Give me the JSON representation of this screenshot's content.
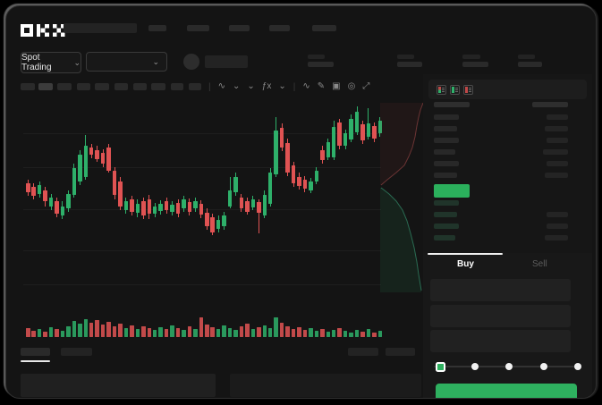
{
  "app": {
    "logo": "OKX",
    "colors": {
      "up": "#2eb06a",
      "down": "#e05353",
      "accent_green": "#2eb05f",
      "bg": "#141414"
    }
  },
  "market_bar": {
    "selector_label": "Spot Trading",
    "chevron": "⌄"
  },
  "chart_toolbar": {
    "icons": [
      {
        "name": "divider",
        "glyph": "|"
      },
      {
        "name": "candle-style-icon",
        "glyph": "∿"
      },
      {
        "name": "candle-style-chevron-icon",
        "glyph": "⌄"
      },
      {
        "name": "layout-chevron-icon",
        "glyph": "⌄"
      },
      {
        "name": "indicators-icon",
        "glyph": "ƒx"
      },
      {
        "name": "indicators-chevron-icon",
        "glyph": "⌄"
      },
      {
        "name": "divider",
        "glyph": "|"
      },
      {
        "name": "line-tool-icon",
        "glyph": "∿"
      },
      {
        "name": "draw-tool-icon",
        "glyph": "✎"
      },
      {
        "name": "screenshot-icon",
        "glyph": "▣"
      },
      {
        "name": "settings-icon",
        "glyph": "◎"
      },
      {
        "name": "fullscreen-icon",
        "glyph": "⤢"
      }
    ]
  },
  "chart": {
    "gridlines": [
      36,
      74,
      121,
      167,
      205
    ],
    "candles": [
      [
        "r",
        92,
        102,
        88,
        106
      ],
      [
        "r",
        96,
        106,
        92,
        110
      ],
      [
        "g",
        94,
        104,
        90,
        108
      ],
      [
        "r",
        100,
        112,
        96,
        118
      ],
      [
        "g",
        108,
        118,
        104,
        122
      ],
      [
        "r",
        112,
        126,
        108,
        130
      ],
      [
        "g",
        118,
        128,
        112,
        132
      ],
      [
        "g",
        104,
        120,
        100,
        124
      ],
      [
        "g",
        75,
        105,
        70,
        108
      ],
      [
        "g",
        60,
        90,
        55,
        94
      ],
      [
        "g",
        50,
        85,
        38,
        88
      ],
      [
        "r",
        52,
        60,
        48,
        64
      ],
      [
        "r",
        55,
        65,
        50,
        68
      ],
      [
        "r",
        58,
        70,
        54,
        74
      ],
      [
        "r",
        52,
        78,
        48,
        80
      ],
      [
        "r",
        78,
        105,
        74,
        110
      ],
      [
        "r",
        90,
        118,
        85,
        122
      ],
      [
        "g",
        112,
        122,
        108,
        126
      ],
      [
        "r",
        110,
        124,
        106,
        128
      ],
      [
        "g",
        115,
        125,
        110,
        130
      ],
      [
        "r",
        112,
        128,
        108,
        132
      ],
      [
        "r",
        110,
        126,
        105,
        132
      ],
      [
        "g",
        118,
        126,
        114,
        130
      ],
      [
        "g",
        115,
        123,
        111,
        127
      ],
      [
        "r",
        112,
        122,
        108,
        126
      ],
      [
        "g",
        116,
        124,
        112,
        128
      ],
      [
        "r",
        114,
        126,
        110,
        130
      ],
      [
        "g",
        110,
        120,
        106,
        124
      ],
      [
        "r",
        113,
        124,
        109,
        128
      ],
      [
        "g",
        112,
        120,
        108,
        124
      ],
      [
        "r",
        115,
        127,
        111,
        131
      ],
      [
        "r",
        125,
        140,
        120,
        144
      ],
      [
        "r",
        130,
        147,
        126,
        150
      ],
      [
        "g",
        133,
        143,
        128,
        147
      ],
      [
        "g",
        128,
        140,
        124,
        144
      ],
      [
        "g",
        100,
        118,
        85,
        120
      ],
      [
        "g",
        85,
        102,
        80,
        106
      ],
      [
        "r",
        108,
        120,
        104,
        124
      ],
      [
        "r",
        112,
        124,
        108,
        127
      ],
      [
        "g",
        110,
        119,
        106,
        122
      ],
      [
        "r",
        113,
        125,
        110,
        148
      ],
      [
        "g",
        105,
        128,
        100,
        131
      ],
      [
        "g",
        80,
        115,
        75,
        118
      ],
      [
        "g",
        33,
        82,
        18,
        85
      ],
      [
        "r",
        30,
        52,
        25,
        56
      ],
      [
        "r",
        47,
        80,
        42,
        84
      ],
      [
        "r",
        72,
        92,
        68,
        96
      ],
      [
        "r",
        85,
        95,
        80,
        99
      ],
      [
        "r",
        88,
        98,
        84,
        102
      ],
      [
        "g",
        90,
        100,
        86,
        103
      ],
      [
        "g",
        78,
        90,
        74,
        93
      ],
      [
        "r",
        55,
        66,
        50,
        70
      ],
      [
        "g",
        46,
        63,
        42,
        66
      ],
      [
        "g",
        29,
        63,
        22,
        66
      ],
      [
        "r",
        24,
        50,
        20,
        54
      ],
      [
        "g",
        36,
        50,
        32,
        54
      ],
      [
        "g",
        20,
        43,
        15,
        46
      ],
      [
        "g",
        12,
        35,
        6,
        38
      ],
      [
        "r",
        26,
        44,
        22,
        48
      ],
      [
        "g",
        25,
        40,
        8,
        43
      ],
      [
        "r",
        28,
        42,
        24,
        46
      ],
      [
        "g",
        22,
        36,
        18,
        40
      ]
    ],
    "volumes": [
      10,
      7,
      9,
      6,
      11,
      9,
      7,
      12,
      18,
      15,
      20,
      16,
      19,
      14,
      17,
      12,
      15,
      10,
      13,
      9,
      12,
      10,
      8,
      11,
      9,
      13,
      10,
      8,
      12,
      9,
      22,
      14,
      11,
      9,
      13,
      10,
      8,
      12,
      15,
      9,
      11,
      13,
      10,
      22,
      16,
      12,
      9,
      11,
      8,
      10,
      7,
      9,
      6,
      8,
      10,
      7,
      5,
      8,
      6,
      9,
      5,
      7
    ]
  },
  "depth": {
    "asks_line": "48,2 45,10 43,18 41,28 39,40 36,52 32,62 27,72 18,80 8,88 1,94",
    "asks_fill": "48,2 45,10 43,18 41,28 39,40 36,52 32,62 27,72 18,80 8,88 1,94 0,94 0,2",
    "bids_line": "1,97 10,104 18,112 25,122 30,134 34,148 38,164 41,180 43,194 45,206 46,212",
    "bids_fill": "1,97 10,104 18,112 25,122 30,134 34,148 38,164 41,180 43,194 45,206 46,212 46,214 0,214 0,97",
    "ask_line_color": "#6b3434",
    "ask_fill_color": "rgba(150,60,60,0.10)",
    "bid_line_color": "#2a6b52",
    "bid_fill_color": "rgba(46,176,106,0.10)"
  },
  "orderbook": {
    "rows_asks": [
      [
        40,
        40
      ],
      [
        28,
        24
      ],
      [
        26,
        26
      ],
      [
        28,
        24
      ],
      [
        24,
        28
      ],
      [
        28,
        24
      ],
      [
        26,
        26
      ]
    ],
    "rows_bids": [
      [
        28,
        0
      ],
      [
        26,
        24
      ],
      [
        28,
        24
      ],
      [
        24,
        26
      ]
    ]
  },
  "trade": {
    "buy_label": "Buy",
    "sell_label": "Sell",
    "slider_stops": [
      0,
      25,
      50,
      75,
      100
    ],
    "slider_active_index": 0
  }
}
